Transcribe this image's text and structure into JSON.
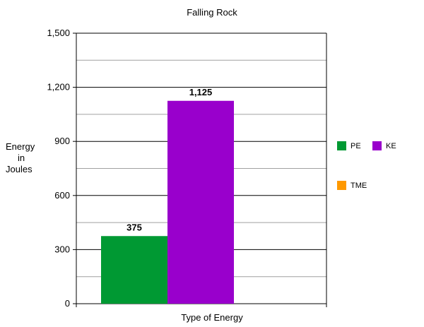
{
  "chart_data": {
    "type": "bar",
    "title": "Falling Rock",
    "xlabel": "Type of Energy",
    "ylabel_lines": [
      "Energy",
      "in",
      "Joules"
    ],
    "ylim": [
      0,
      1500
    ],
    "ytick_labels": [
      "0",
      "300",
      "600",
      "900",
      "1,200",
      "1,500"
    ],
    "ytick_values": [
      0,
      300,
      600,
      900,
      1200,
      1500
    ],
    "grid": true,
    "legend_position": "right",
    "series": [
      {
        "name": "PE",
        "color": "#009933",
        "value": 375,
        "label": "375"
      },
      {
        "name": "KE",
        "color": "#9900cc",
        "value": 1125,
        "label": "1,125"
      },
      {
        "name": "TME",
        "color": "#ff9900",
        "value": null,
        "label": ""
      }
    ]
  }
}
